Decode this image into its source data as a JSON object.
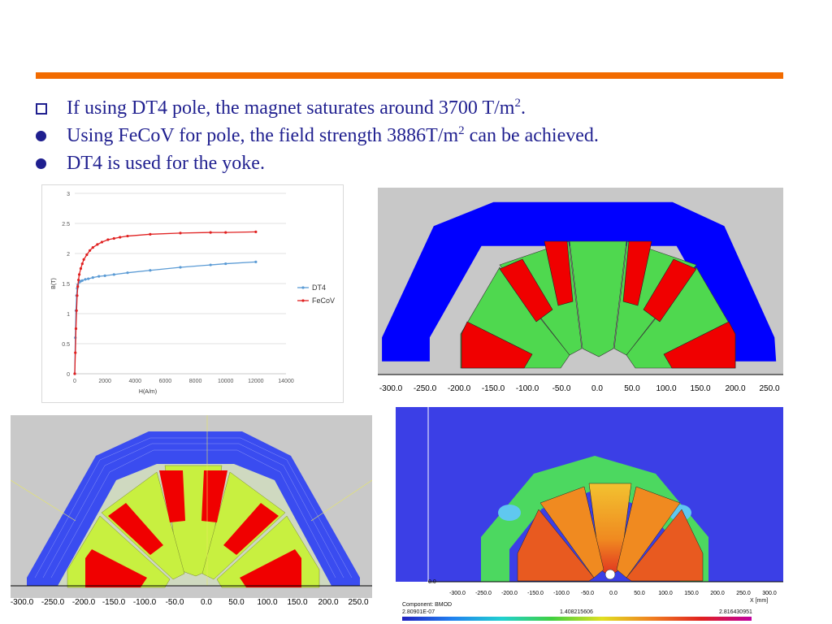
{
  "bullets": [
    {
      "marker": "square",
      "text": "If using DT4 pole, the magnet saturates around 3700 T/m",
      "sup": "2",
      "tail": "."
    },
    {
      "marker": "dot",
      "text": "Using FeCoV for pole, the field strength 3886T/m",
      "sup": "2",
      "tail": " can be achieved."
    },
    {
      "marker": "dot",
      "text": "DT4 is used for the yoke.",
      "sup": "",
      "tail": ""
    }
  ],
  "colors": {
    "accent_bar": "#f26b00",
    "text": "#1f1f8f",
    "dt4": "#5b9bd5",
    "fecov": "#e02020"
  },
  "chart_data": {
    "type": "line",
    "title": "",
    "xlabel": "H(A/m)",
    "ylabel": "B(T)",
    "xlim": [
      0,
      14000
    ],
    "ylim": [
      0,
      3
    ],
    "xticks": [
      "0",
      "2000",
      "4000",
      "6000",
      "8000",
      "10000",
      "12000",
      "14000"
    ],
    "yticks": [
      "0",
      "0.5",
      "1",
      "1.5",
      "2",
      "2.5",
      "3"
    ],
    "legend_position": "right",
    "series": [
      {
        "name": "DT4",
        "color": "#5b9bd5",
        "x": [
          0,
          40,
          80,
          120,
          160,
          200,
          300,
          400,
          500,
          700,
          900,
          1200,
          1600,
          2000,
          2600,
          3500,
          5000,
          7000,
          9000,
          10000,
          12000
        ],
        "y": [
          0,
          0.6,
          1.05,
          1.3,
          1.42,
          1.48,
          1.52,
          1.54,
          1.55,
          1.57,
          1.58,
          1.6,
          1.62,
          1.63,
          1.65,
          1.68,
          1.72,
          1.77,
          1.81,
          1.83,
          1.86
        ]
      },
      {
        "name": "FeCoV",
        "color": "#e02020",
        "x": [
          0,
          40,
          80,
          120,
          160,
          200,
          250,
          300,
          400,
          500,
          600,
          800,
          1000,
          1200,
          1500,
          1800,
          2200,
          2600,
          3000,
          3500,
          5000,
          7000,
          9000,
          10000,
          12000
        ],
        "y": [
          0,
          0.35,
          0.75,
          1.05,
          1.3,
          1.45,
          1.56,
          1.65,
          1.75,
          1.83,
          1.9,
          1.98,
          2.05,
          2.1,
          2.15,
          2.19,
          2.23,
          2.25,
          2.27,
          2.29,
          2.32,
          2.34,
          2.35,
          2.35,
          2.36
        ]
      }
    ]
  },
  "axis_top_right": {
    "labels": [
      "-300.0",
      "-250.0",
      "-200.0",
      "-150.0",
      "-100.0",
      "-50.0",
      "0.0",
      "50.0",
      "100.0",
      "150.0",
      "200.0",
      "250.0"
    ]
  },
  "axis_bottom_left": {
    "labels": [
      "-300.0",
      "-250.0",
      "-200.0",
      "-150.0",
      "-100.0",
      "-50.0",
      "0.0",
      "50.0",
      "100.0",
      "150.0",
      "200.0",
      "250.0"
    ]
  },
  "axis_bottom_right": {
    "y_label": "0.0",
    "labels": [
      "-300.0",
      "-250.0",
      "-200.0",
      "-150.0",
      "-100.0",
      "-50.0",
      "0.0",
      "50.0",
      "100.0",
      "150.0",
      "200.0",
      "250.0",
      "300.0"
    ],
    "x_unit": "X [mm]",
    "component": "Component: BMOD",
    "scale_min": "2.80901E-07",
    "scale_mid": "1.408215606",
    "scale_max": "2.816430951"
  }
}
